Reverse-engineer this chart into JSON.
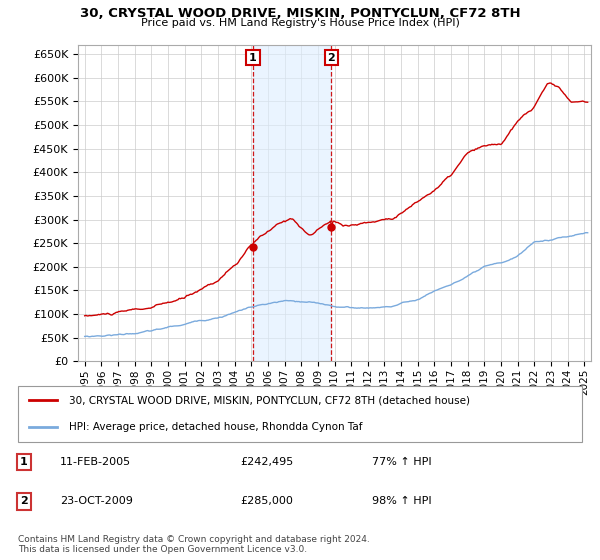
{
  "title": "30, CRYSTAL WOOD DRIVE, MISKIN, PONTYCLUN, CF72 8TH",
  "subtitle": "Price paid vs. HM Land Registry's House Price Index (HPI)",
  "ylim": [
    0,
    670000
  ],
  "yticks": [
    0,
    50000,
    100000,
    150000,
    200000,
    250000,
    300000,
    350000,
    400000,
    450000,
    500000,
    550000,
    600000,
    650000
  ],
  "sale1_date": 2005.1,
  "sale1_label": "1",
  "sale1_price": 242495,
  "sale2_date": 2009.81,
  "sale2_label": "2",
  "sale2_price": 285000,
  "sale1_text": "11-FEB-2005",
  "sale1_amount": "£242,495",
  "sale1_hpi": "77% ↑ HPI",
  "sale2_text": "23-OCT-2009",
  "sale2_amount": "£285,000",
  "sale2_hpi": "98% ↑ HPI",
  "legend_line1": "30, CRYSTAL WOOD DRIVE, MISKIN, PONTYCLUN, CF72 8TH (detached house)",
  "legend_line2": "HPI: Average price, detached house, Rhondda Cynon Taf",
  "footer": "Contains HM Land Registry data © Crown copyright and database right 2024.\nThis data is licensed under the Open Government Licence v3.0.",
  "red_color": "#cc0000",
  "blue_color": "#7aaadd",
  "bg_color": "#ffffff",
  "grid_color": "#cccccc",
  "vspan_color": "#ddeeff",
  "sale_box_color": "#cc3333"
}
